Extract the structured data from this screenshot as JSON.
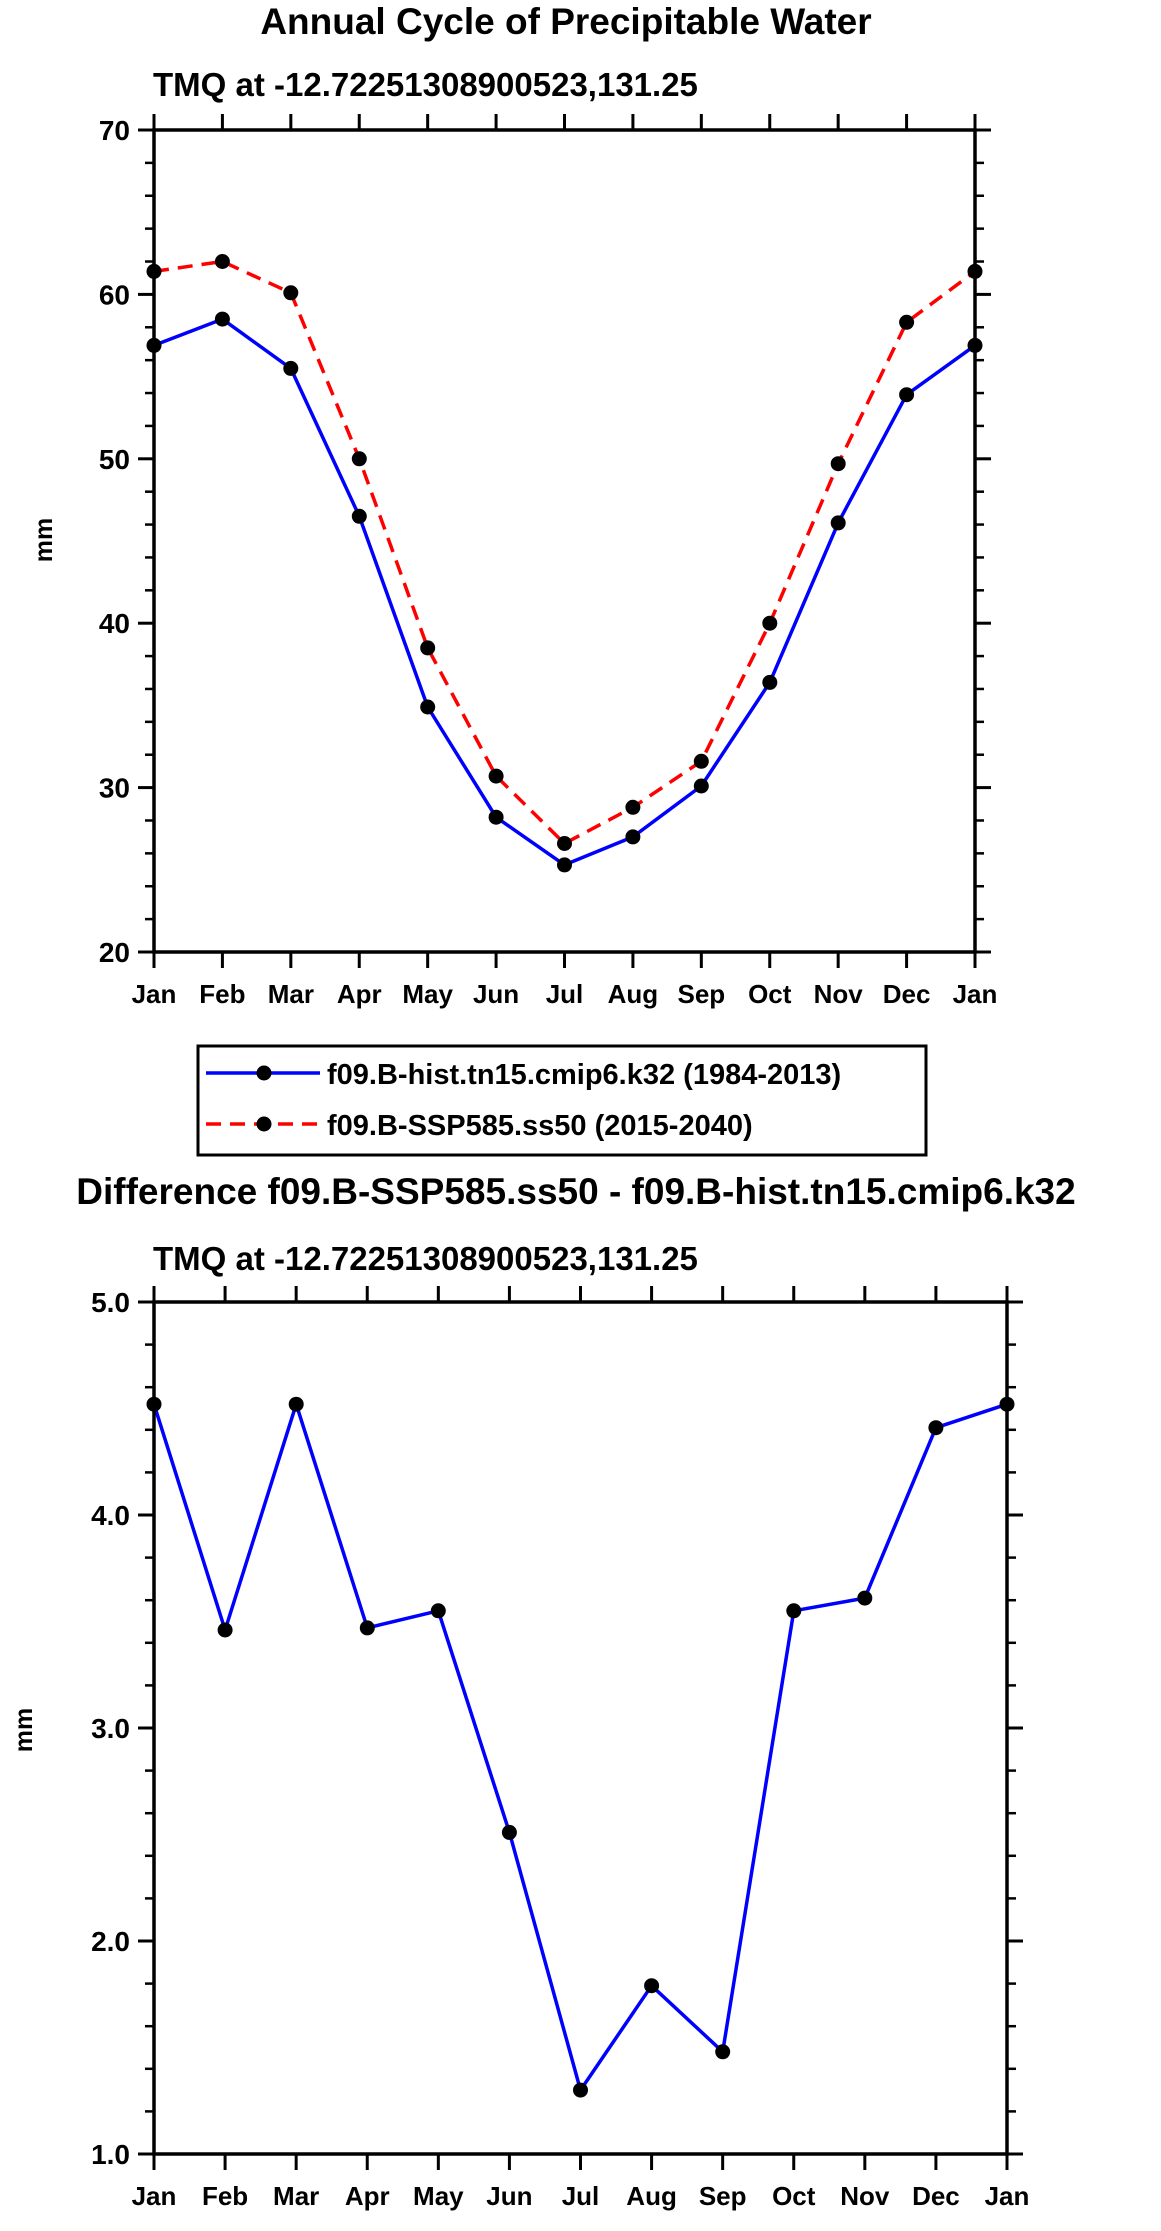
{
  "colors": {
    "hist": "#0000ff",
    "ssp": "#ff0000",
    "diff": "#0000ff",
    "marker": "#000000"
  },
  "chart_data": [
    {
      "type": "line",
      "title": "Annual Cycle of Precipitable Water",
      "subtitle": "TMQ at -12.72251308900523,131.25",
      "xlabel": "",
      "ylabel": "mm",
      "categories": [
        "Jan",
        "Feb",
        "Mar",
        "Apr",
        "May",
        "Jun",
        "Jul",
        "Aug",
        "Sep",
        "Oct",
        "Nov",
        "Dec",
        "Jan"
      ],
      "ylim": [
        20,
        70
      ],
      "yticks": [
        20,
        30,
        40,
        50,
        60,
        70
      ],
      "ytick_labels": [
        "20",
        "30",
        "40",
        "50",
        "60",
        "70"
      ],
      "yminor_step": 2,
      "series": [
        {
          "name": "f09.B-hist.tn15.cmip6.k32 (1984-2013)",
          "style": "solid",
          "values": [
            56.9,
            58.5,
            55.5,
            46.5,
            34.9,
            28.2,
            25.3,
            27.0,
            30.1,
            36.4,
            46.1,
            53.9,
            56.9
          ]
        },
        {
          "name": "f09.B-SSP585.ss50 (2015-2040)",
          "style": "dashed",
          "values": [
            61.4,
            62.0,
            60.1,
            50.0,
            38.5,
            30.7,
            26.6,
            28.8,
            31.6,
            40.0,
            49.7,
            58.3,
            61.4
          ]
        }
      ],
      "legend": {
        "position": "bottom-center"
      }
    },
    {
      "type": "line",
      "title": "Difference f09.B-SSP585.ss50 - f09.B-hist.tn15.cmip6.k32",
      "subtitle": "TMQ at -12.72251308900523,131.25",
      "xlabel": "",
      "ylabel": "mm",
      "categories": [
        "Jan",
        "Feb",
        "Mar",
        "Apr",
        "May",
        "Jun",
        "Jul",
        "Aug",
        "Sep",
        "Oct",
        "Nov",
        "Dec",
        "Jan"
      ],
      "ylim": [
        1.0,
        5.0
      ],
      "yticks": [
        1.0,
        2.0,
        3.0,
        4.0,
        5.0
      ],
      "ytick_labels": [
        "1.0",
        "2.0",
        "3.0",
        "4.0",
        "5.0"
      ],
      "yminor_step": 0.2,
      "series": [
        {
          "name": "Difference",
          "style": "solid",
          "values": [
            4.52,
            3.46,
            4.52,
            3.47,
            3.55,
            2.51,
            1.3,
            1.79,
            1.48,
            3.55,
            3.61,
            4.41,
            4.52
          ]
        }
      ]
    }
  ]
}
